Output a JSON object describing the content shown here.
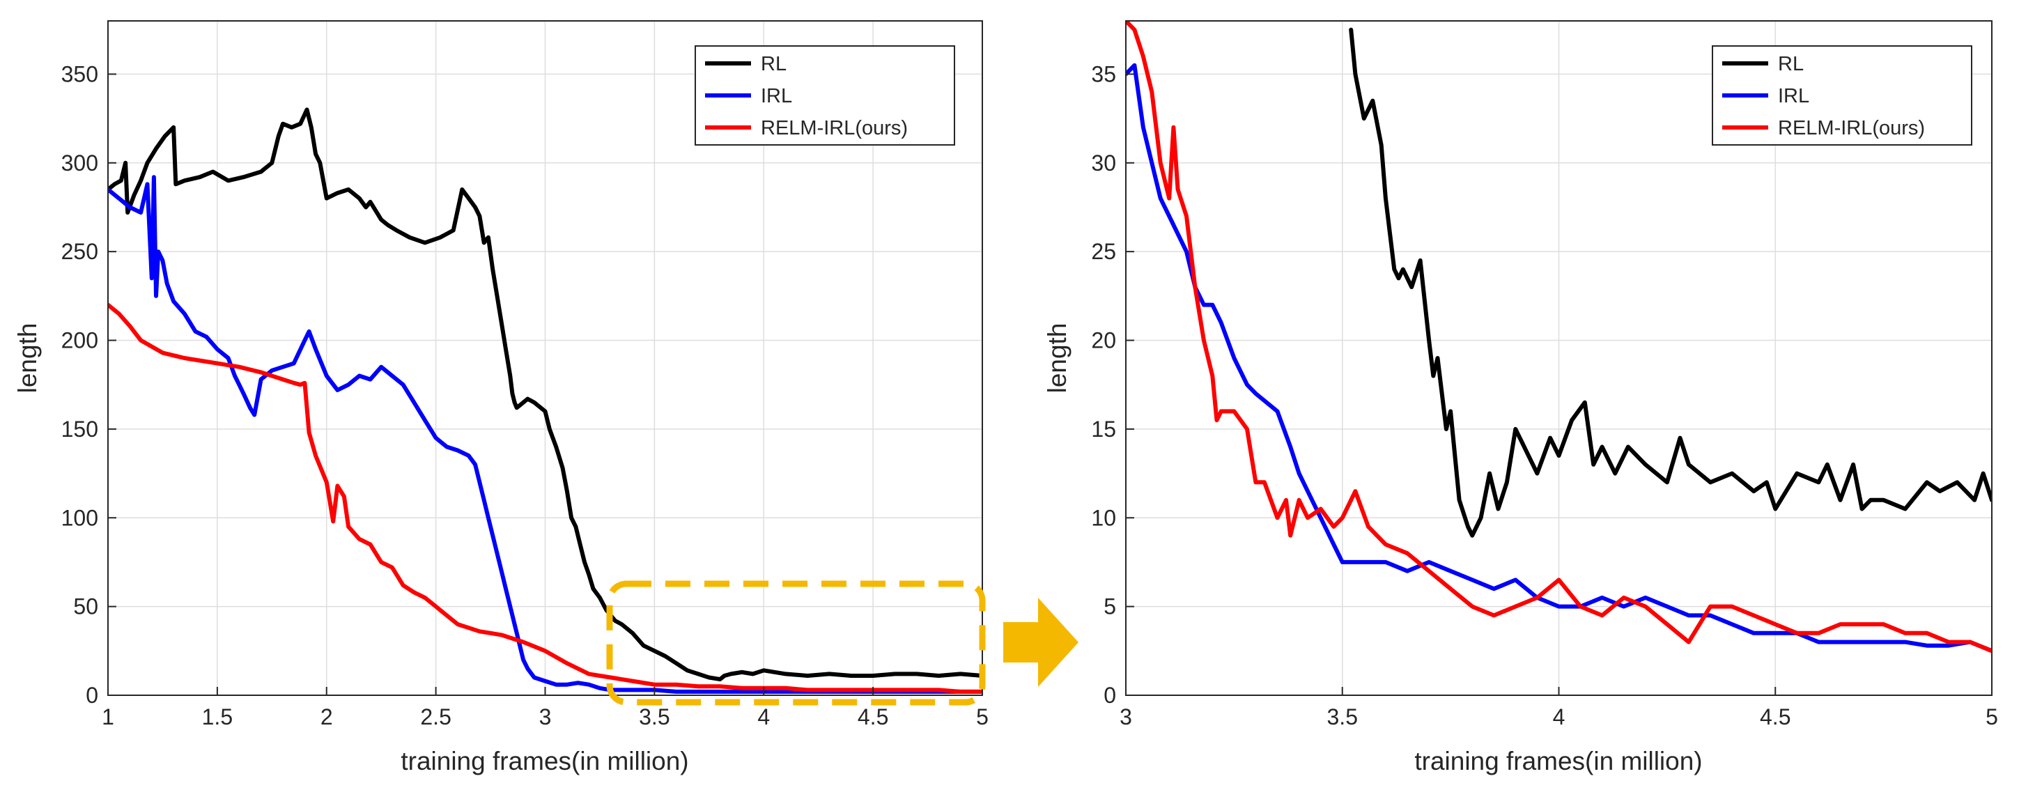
{
  "chart_data": [
    {
      "type": "line",
      "panel": "left",
      "title": "",
      "xlabel": "training frames(in million)",
      "ylabel": "length",
      "xlim": [
        1,
        5
      ],
      "ylim": [
        0,
        380
      ],
      "xticks": [
        1,
        1.5,
        2,
        2.5,
        3,
        3.5,
        4,
        4.5,
        5
      ],
      "xtick_labels": [
        "1",
        "1.5",
        "2",
        "2.5",
        "3",
        "3.5",
        "4",
        "4.5",
        "5"
      ],
      "yticks": [
        0,
        50,
        100,
        150,
        200,
        250,
        300,
        350
      ],
      "ytick_labels": [
        "0",
        "50",
        "100",
        "150",
        "200",
        "250",
        "300",
        "350"
      ],
      "grid": true,
      "legend_position": "top-right",
      "highlight": "dashed box around x 3.3–5, y 0–62 (zoomed in right panel)",
      "series": [
        {
          "name": "RL",
          "color": "#000000",
          "x": [
            1.0,
            1.03,
            1.06,
            1.08,
            1.09,
            1.12,
            1.15,
            1.18,
            1.22,
            1.26,
            1.3,
            1.31,
            1.35,
            1.42,
            1.48,
            1.55,
            1.62,
            1.7,
            1.75,
            1.78,
            1.8,
            1.84,
            1.88,
            1.91,
            1.93,
            1.95,
            1.97,
            2.0,
            2.05,
            2.1,
            2.15,
            2.18,
            2.2,
            2.25,
            2.28,
            2.32,
            2.38,
            2.45,
            2.52,
            2.58,
            2.62,
            2.65,
            2.68,
            2.7,
            2.72,
            2.74,
            2.76,
            2.78,
            2.8,
            2.82,
            2.84,
            2.85,
            2.86,
            2.87,
            2.88,
            2.9,
            2.92,
            2.95,
            3.0,
            3.02,
            3.05,
            3.08,
            3.1,
            3.12,
            3.14,
            3.16,
            3.18,
            3.2,
            3.22,
            3.25,
            3.28,
            3.3,
            3.32,
            3.35,
            3.4,
            3.45,
            3.5,
            3.55,
            3.6,
            3.65,
            3.7,
            3.75,
            3.8,
            3.82,
            3.85,
            3.9,
            3.95,
            4.0,
            4.1,
            4.2,
            4.3,
            4.4,
            4.5,
            4.6,
            4.7,
            4.8,
            4.9,
            5.0
          ],
          "y": [
            285,
            288,
            290,
            300,
            272,
            282,
            290,
            300,
            308,
            315,
            320,
            288,
            290,
            292,
            295,
            290,
            292,
            295,
            300,
            315,
            322,
            320,
            322,
            330,
            320,
            305,
            300,
            280,
            283,
            285,
            280,
            275,
            278,
            268,
            265,
            262,
            258,
            255,
            258,
            262,
            285,
            280,
            275,
            270,
            255,
            258,
            240,
            225,
            210,
            195,
            180,
            170,
            165,
            162,
            163,
            165,
            167,
            165,
            160,
            150,
            140,
            128,
            115,
            100,
            95,
            85,
            75,
            68,
            60,
            55,
            48,
            45,
            42,
            40,
            35,
            28,
            25,
            22,
            18,
            14,
            12,
            10,
            9,
            11,
            12,
            13,
            12,
            14,
            12,
            11,
            12,
            11,
            11,
            12,
            12,
            11,
            12,
            11
          ]
        },
        {
          "name": "IRL",
          "color": "#0000ff",
          "x": [
            1.0,
            1.05,
            1.1,
            1.15,
            1.18,
            1.2,
            1.21,
            1.22,
            1.23,
            1.25,
            1.27,
            1.3,
            1.35,
            1.4,
            1.45,
            1.5,
            1.55,
            1.58,
            1.6,
            1.62,
            1.65,
            1.67,
            1.7,
            1.75,
            1.8,
            1.85,
            1.9,
            1.92,
            1.95,
            2.0,
            2.05,
            2.1,
            2.15,
            2.2,
            2.25,
            2.3,
            2.35,
            2.4,
            2.45,
            2.5,
            2.55,
            2.6,
            2.65,
            2.68,
            2.7,
            2.72,
            2.74,
            2.76,
            2.78,
            2.8,
            2.82,
            2.84,
            2.86,
            2.88,
            2.9,
            2.92,
            2.95,
            3.0,
            3.05,
            3.1,
            3.15,
            3.2,
            3.25,
            3.3,
            3.35,
            3.4,
            3.5,
            3.6,
            3.7,
            3.8,
            3.9,
            4.0,
            4.1,
            4.2,
            4.3,
            4.4,
            4.5,
            4.6,
            4.7,
            4.8,
            4.9,
            5.0
          ],
          "y": [
            285,
            280,
            275,
            272,
            288,
            235,
            292,
            225,
            250,
            245,
            232,
            222,
            215,
            205,
            202,
            195,
            190,
            180,
            175,
            170,
            162,
            158,
            178,
            183,
            185,
            187,
            200,
            205,
            195,
            180,
            172,
            175,
            180,
            178,
            185,
            180,
            175,
            165,
            155,
            145,
            140,
            138,
            135,
            130,
            120,
            110,
            100,
            90,
            80,
            70,
            60,
            50,
            40,
            30,
            20,
            15,
            10,
            8,
            6,
            6,
            7,
            6,
            4,
            3,
            3,
            3,
            3,
            2,
            2,
            2,
            2,
            2,
            2,
            2,
            2,
            2,
            2,
            2,
            2,
            2,
            2,
            2
          ]
        },
        {
          "name": "RELM-IRL(ours)",
          "color": "#ff0000",
          "x": [
            1.0,
            1.05,
            1.1,
            1.15,
            1.25,
            1.35,
            1.5,
            1.6,
            1.7,
            1.8,
            1.85,
            1.88,
            1.9,
            1.92,
            1.95,
            2.0,
            2.03,
            2.05,
            2.08,
            2.1,
            2.15,
            2.2,
            2.25,
            2.3,
            2.35,
            2.4,
            2.45,
            2.5,
            2.55,
            2.6,
            2.65,
            2.7,
            2.75,
            2.8,
            2.85,
            2.9,
            3.0,
            3.1,
            3.2,
            3.25,
            3.3,
            3.35,
            3.4,
            3.5,
            3.6,
            3.7,
            3.8,
            3.9,
            4.0,
            4.1,
            4.2,
            4.3,
            4.4,
            4.5,
            4.6,
            4.7,
            4.8,
            4.9,
            5.0
          ],
          "y": [
            220,
            215,
            208,
            200,
            193,
            190,
            187,
            185,
            182,
            178,
            176,
            175,
            176,
            148,
            135,
            120,
            98,
            118,
            112,
            95,
            88,
            85,
            75,
            72,
            62,
            58,
            55,
            50,
            45,
            40,
            38,
            36,
            35,
            34,
            32,
            30,
            25,
            18,
            12,
            11,
            10,
            9,
            8,
            6,
            6,
            5,
            5,
            4,
            4,
            4,
            3,
            3,
            3,
            3,
            3,
            3,
            3,
            2,
            2
          ]
        }
      ]
    },
    {
      "type": "line",
      "panel": "right",
      "title": "",
      "xlabel": "training frames(in million)",
      "ylabel": "length",
      "xlim": [
        3,
        5
      ],
      "ylim": [
        0,
        38
      ],
      "xticks": [
        3,
        3.5,
        4,
        4.5,
        5
      ],
      "xtick_labels": [
        "3",
        "3.5",
        "4",
        "4.5",
        "5"
      ],
      "yticks": [
        0,
        5,
        10,
        15,
        20,
        25,
        30,
        35
      ],
      "ytick_labels": [
        "0",
        "5",
        "10",
        "15",
        "20",
        "25",
        "30",
        "35"
      ],
      "grid": true,
      "legend_position": "top-right",
      "series": [
        {
          "name": "RL",
          "color": "#000000",
          "x": [
            3.52,
            3.53,
            3.55,
            3.57,
            3.59,
            3.6,
            3.62,
            3.63,
            3.64,
            3.66,
            3.68,
            3.7,
            3.71,
            3.72,
            3.74,
            3.75,
            3.77,
            3.79,
            3.8,
            3.82,
            3.84,
            3.86,
            3.88,
            3.9,
            3.92,
            3.95,
            3.98,
            4.0,
            4.03,
            4.06,
            4.08,
            4.1,
            4.13,
            4.16,
            4.2,
            4.25,
            4.28,
            4.3,
            4.35,
            4.4,
            4.45,
            4.48,
            4.5,
            4.55,
            4.6,
            4.62,
            4.65,
            4.68,
            4.7,
            4.72,
            4.75,
            4.8,
            4.85,
            4.88,
            4.92,
            4.96,
            4.98,
            5.0
          ],
          "y": [
            37.5,
            35,
            32.5,
            33.5,
            31,
            28,
            24,
            23.5,
            24,
            23,
            24.5,
            20,
            18,
            19,
            15,
            16,
            11,
            9.5,
            9,
            10,
            12.5,
            10.5,
            12,
            15,
            14,
            12.5,
            14.5,
            13.5,
            15.5,
            16.5,
            13,
            14,
            12.5,
            14,
            13,
            12,
            14.5,
            13,
            12,
            12.5,
            11.5,
            12,
            10.5,
            12.5,
            12,
            13,
            11,
            13,
            10.5,
            11,
            11,
            10.5,
            12,
            11.5,
            12,
            11,
            12.5,
            11
          ]
        },
        {
          "name": "IRL",
          "color": "#0000ff",
          "x": [
            3.0,
            3.02,
            3.04,
            3.06,
            3.08,
            3.1,
            3.12,
            3.14,
            3.16,
            3.18,
            3.2,
            3.22,
            3.25,
            3.28,
            3.3,
            3.35,
            3.38,
            3.4,
            3.42,
            3.45,
            3.48,
            3.5,
            3.55,
            3.6,
            3.65,
            3.7,
            3.75,
            3.8,
            3.85,
            3.9,
            3.95,
            4.0,
            4.05,
            4.1,
            4.15,
            4.2,
            4.25,
            4.3,
            4.35,
            4.4,
            4.45,
            4.5,
            4.55,
            4.6,
            4.65,
            4.7,
            4.75,
            4.8,
            4.85,
            4.9,
            4.95,
            5.0
          ],
          "y": [
            35,
            35.5,
            32,
            30,
            28,
            27,
            26,
            25,
            23,
            22,
            22,
            21,
            19,
            17.5,
            17,
            16,
            14,
            12.5,
            11.5,
            10,
            8.5,
            7.5,
            7.5,
            7.5,
            7,
            7.5,
            7,
            6.5,
            6,
            6.5,
            5.5,
            5,
            5,
            5.5,
            5,
            5.5,
            5,
            4.5,
            4.5,
            4,
            3.5,
            3.5,
            3.5,
            3,
            3,
            3,
            3,
            3,
            2.8,
            2.8,
            3,
            2.5
          ]
        },
        {
          "name": "RELM-IRL(ours)",
          "color": "#ff0000",
          "x": [
            3.0,
            3.02,
            3.04,
            3.06,
            3.08,
            3.1,
            3.11,
            3.12,
            3.14,
            3.16,
            3.18,
            3.2,
            3.21,
            3.22,
            3.25,
            3.28,
            3.3,
            3.32,
            3.35,
            3.37,
            3.38,
            3.4,
            3.42,
            3.45,
            3.48,
            3.5,
            3.53,
            3.56,
            3.6,
            3.65,
            3.7,
            3.75,
            3.8,
            3.85,
            3.9,
            3.95,
            4.0,
            4.05,
            4.1,
            4.15,
            4.2,
            4.25,
            4.3,
            4.35,
            4.4,
            4.45,
            4.5,
            4.55,
            4.6,
            4.65,
            4.7,
            4.75,
            4.8,
            4.85,
            4.9,
            4.95,
            5.0
          ],
          "y": [
            38,
            37.5,
            36,
            34,
            30,
            28,
            32,
            28.5,
            27,
            23,
            20,
            18,
            15.5,
            16,
            16,
            15,
            12,
            12,
            10,
            11,
            9,
            11,
            10,
            10.5,
            9.5,
            10,
            11.5,
            9.5,
            8.5,
            8,
            7,
            6,
            5,
            4.5,
            5,
            5.5,
            6.5,
            5,
            4.5,
            5.5,
            5,
            4,
            3,
            5,
            5,
            4.5,
            4,
            3.5,
            3.5,
            4,
            4,
            4,
            3.5,
            3.5,
            3,
            3,
            2.5
          ]
        }
      ]
    }
  ]
}
